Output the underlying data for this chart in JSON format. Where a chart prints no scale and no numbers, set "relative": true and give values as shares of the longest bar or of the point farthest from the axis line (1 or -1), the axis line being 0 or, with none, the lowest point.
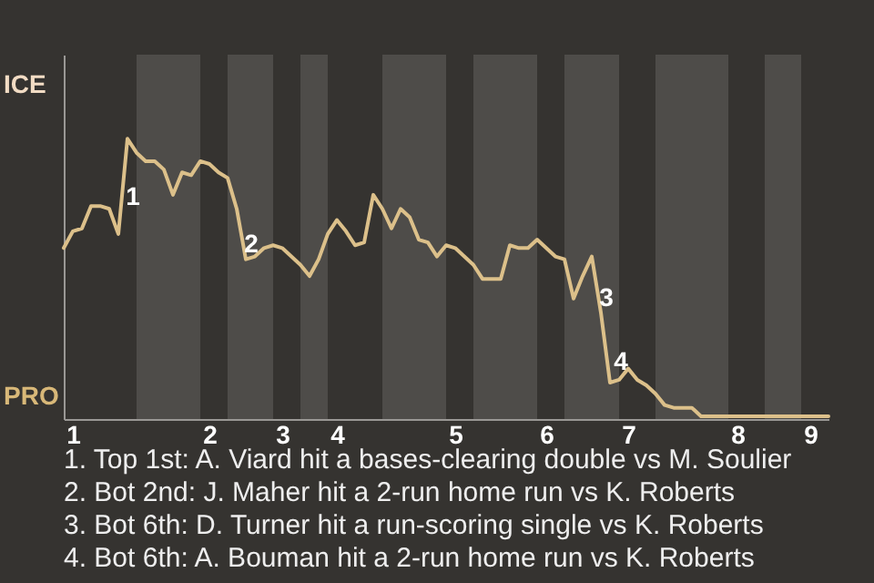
{
  "chart_data": {
    "type": "line",
    "relative": true,
    "categories": [
      null,
      "1",
      null,
      null,
      null,
      null,
      null,
      null,
      null,
      null,
      null,
      null,
      null,
      null,
      null,
      null,
      "2",
      null,
      null,
      null,
      null,
      null,
      null,
      null,
      "3",
      null,
      null,
      null,
      null,
      null,
      "4",
      null,
      null,
      null,
      null,
      null,
      null,
      null,
      null,
      null,
      null,
      null,
      null,
      "5",
      null,
      null,
      null,
      null,
      null,
      null,
      null,
      null,
      null,
      "6",
      null,
      null,
      null,
      null,
      null,
      null,
      null,
      null,
      "7",
      null,
      null,
      null,
      null,
      null,
      null,
      null,
      null,
      null,
      null,
      null,
      "8",
      null,
      null,
      null,
      null,
      null,
      null,
      null,
      "9",
      null,
      null
    ],
    "series": [
      {
        "color": "#dcc08a",
        "values": [
          0.61,
          0.67,
          0.68,
          0.76,
          0.76,
          0.75,
          0.66,
          1,
          0.95,
          0.92,
          0.92,
          0.89,
          0.8,
          0.88,
          0.87,
          0.92,
          0.91,
          0.88,
          0.86,
          0.75,
          0.57,
          0.58,
          0.61,
          0.62,
          0.61,
          0.58,
          0.55,
          0.51,
          0.57,
          0.66,
          0.71,
          0.67,
          0.62,
          0.63,
          0.8,
          0.75,
          0.68,
          0.75,
          0.72,
          0.64,
          0.63,
          0.58,
          0.62,
          0.61,
          0.58,
          0.55,
          0.5,
          0.5,
          0.5,
          0.62,
          0.61,
          0.61,
          0.64,
          0.61,
          0.58,
          0.57,
          0.43,
          0.51,
          0.58,
          0.38,
          0.13,
          0.14,
          0.18,
          0.14,
          0.12,
          0.09,
          0.05,
          0.04,
          0.04,
          0.04,
          0.01,
          0.01,
          0.01,
          0.01,
          0.01,
          0.01,
          0.01,
          0.01,
          0.01,
          0.01,
          0.01,
          0.01,
          0.01,
          0.01,
          0.01
        ]
      }
    ],
    "annotations": [
      "1",
      "2",
      "3",
      "4",
      "ICE",
      "PRO",
      "1. Top 1st: A. Viard hit a bases-clearing double vs M. Soulier",
      "2. Bot 2nd: J. Maher hit a 2-run home run vs K. Roberts",
      "3. Bot 6th: D. Turner hit a run-scoring single vs K. Roberts",
      "4. Bot 6th: A. Bouman hit a 2-run home run vs K. Roberts"
    ],
    "marker": "none",
    "line_style": "solid"
  }
}
